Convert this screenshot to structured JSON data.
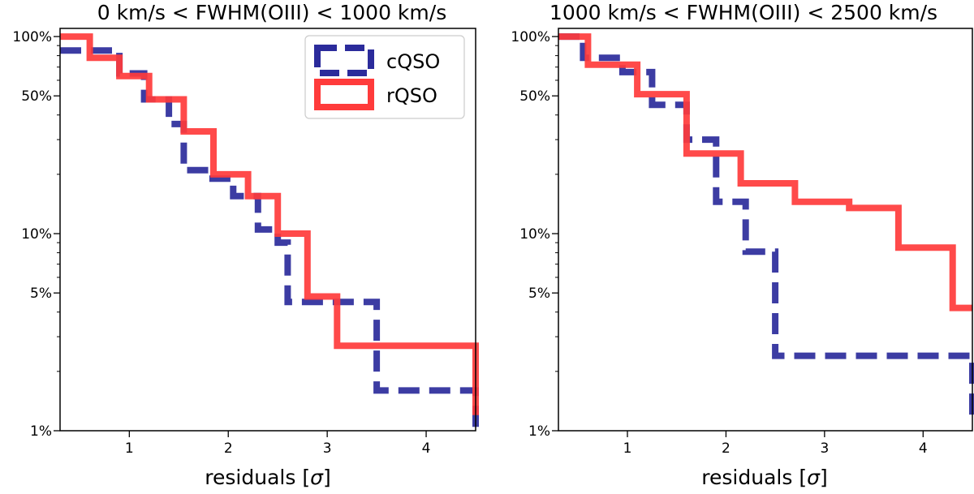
{
  "chart_data": [
    {
      "type": "step",
      "title": "0 km/s < FWHM(OIII) < 1000 km/s",
      "xlabel": "residuals [",
      "xlabel_symbol": "σ",
      "xlabel_close": "]",
      "ylabel": "",
      "xlim": [
        0.3,
        4.5
      ],
      "ylim": [
        0.01,
        1.1
      ],
      "yscale": "log",
      "xticks": [
        1,
        2,
        3,
        4
      ],
      "xtick_labels": [
        "1",
        "2",
        "3",
        "4"
      ],
      "yticks": [
        0.01,
        0.05,
        0.1,
        0.5,
        1.0
      ],
      "ytick_labels": [
        "1%",
        "5%",
        "10%",
        "50%",
        "100%"
      ],
      "legend": {
        "position": "top-right",
        "entries": [
          "cQSO",
          "rQSO"
        ]
      },
      "series": [
        {
          "name": "cQSO",
          "color": "#2b2b9b",
          "style": "dashed",
          "x": [
            0.3,
            0.6,
            0.9,
            1.15,
            1.4,
            1.55,
            1.8,
            2.05,
            2.3,
            2.5,
            2.6,
            3.05,
            3.5,
            4.35,
            4.5
          ],
          "y": [
            0.85,
            0.85,
            0.65,
            0.48,
            0.36,
            0.21,
            0.19,
            0.155,
            0.105,
            0.09,
            0.045,
            0.045,
            0.016,
            0.016,
            0.01
          ]
        },
        {
          "name": "rQSO",
          "color": "#ff3b3b",
          "style": "solid",
          "x": [
            0.3,
            0.6,
            0.9,
            1.2,
            1.55,
            1.85,
            2.2,
            2.5,
            2.8,
            3.1,
            4.5
          ],
          "y": [
            1.0,
            0.78,
            0.63,
            0.48,
            0.33,
            0.2,
            0.155,
            0.1,
            0.048,
            0.027,
            0.012
          ]
        }
      ]
    },
    {
      "type": "step",
      "title": "1000 km/s < FWHM(OIII) < 2500 km/s",
      "xlabel": "residuals [",
      "xlabel_symbol": "σ",
      "xlabel_close": "]",
      "ylabel": "",
      "xlim": [
        0.3,
        4.5
      ],
      "ylim": [
        0.01,
        1.1
      ],
      "yscale": "log",
      "xticks": [
        1,
        2,
        3,
        4
      ],
      "xtick_labels": [
        "1",
        "2",
        "3",
        "4"
      ],
      "yticks": [
        0.01,
        0.05,
        0.1,
        0.5,
        1.0
      ],
      "ytick_labels": [
        "1%",
        "5%",
        "10%",
        "50%",
        "100%"
      ],
      "series": [
        {
          "name": "cQSO",
          "color": "#2b2b9b",
          "style": "dashed",
          "x": [
            0.3,
            0.55,
            0.95,
            1.25,
            1.6,
            1.9,
            2.2,
            2.5,
            4.15,
            4.5
          ],
          "y": [
            1.0,
            0.78,
            0.66,
            0.45,
            0.3,
            0.145,
            0.081,
            0.024,
            0.024,
            0.0115
          ]
        },
        {
          "name": "rQSO",
          "color": "#ff3b3b",
          "style": "solid",
          "x": [
            0.3,
            0.6,
            1.1,
            1.6,
            2.15,
            2.7,
            3.25,
            3.75,
            4.3,
            4.5
          ],
          "y": [
            1.0,
            0.72,
            0.51,
            0.255,
            0.18,
            0.145,
            0.135,
            0.085,
            0.042,
            0.042
          ]
        }
      ]
    }
  ]
}
